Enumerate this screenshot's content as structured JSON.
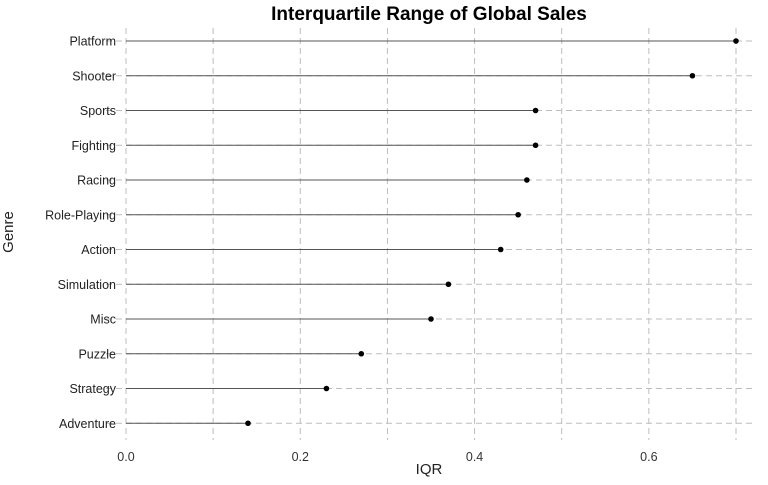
{
  "chart_data": {
    "type": "lollipop",
    "title": "Interquartile Range of Global Sales",
    "xlabel": "IQR",
    "ylabel": "Genre",
    "xlim": [
      -0.05,
      0.73
    ],
    "x_ticks": [
      "0.0",
      "0.2",
      "0.4",
      "0.6"
    ],
    "x_tick_values": [
      0.0,
      0.2,
      0.4,
      0.6
    ],
    "grid": true,
    "categories": [
      "Platform",
      "Shooter",
      "Sports",
      "Fighting",
      "Racing",
      "Role-Playing",
      "Action",
      "Simulation",
      "Misc",
      "Puzzle",
      "Strategy",
      "Adventure"
    ],
    "values": [
      0.7,
      0.65,
      0.47,
      0.47,
      0.46,
      0.45,
      0.43,
      0.37,
      0.35,
      0.27,
      0.23,
      0.14
    ]
  }
}
